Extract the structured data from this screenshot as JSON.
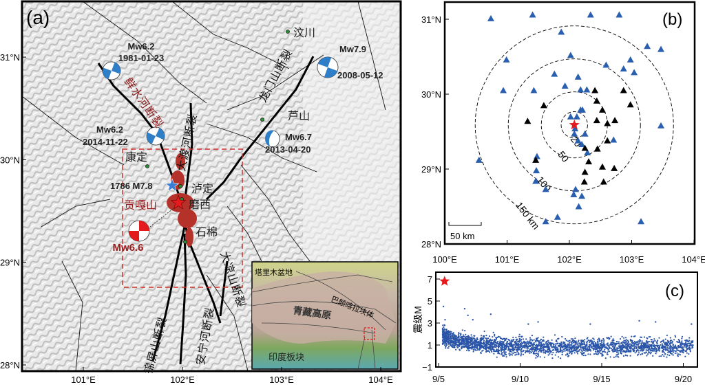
{
  "panel_a": {
    "label": "(a)",
    "lat_ticks": [
      {
        "v": 28,
        "t": "28°N"
      },
      {
        "v": 29,
        "t": "29°N"
      },
      {
        "v": 30,
        "t": "30°N"
      },
      {
        "v": 31,
        "t": "31°N"
      }
    ],
    "lon_ticks": [
      {
        "v": 101,
        "t": "101°E"
      },
      {
        "v": 102,
        "t": "102°E"
      },
      {
        "v": 103,
        "t": "103°E"
      },
      {
        "v": 104,
        "t": "104°E"
      }
    ],
    "places": {
      "wenchuan": "汶川",
      "lushan": "芦山",
      "kangding": "康定",
      "luding": "泸定",
      "moxi": "磨西",
      "shimian": "石棉",
      "gongga": "贡嘎山"
    },
    "faults": {
      "xianshuihe": "鲜水河断裂",
      "daduhe": "大渡河断裂",
      "longmenshan": "龙门山断裂",
      "jinpingshan": "锦屏山断裂",
      "anninghe": "安宁河断裂",
      "daliangshan": "大凉山断裂"
    },
    "events": [
      {
        "mag": "Mw6.2",
        "date": "1981-01-23",
        "color": "#2f7fc8"
      },
      {
        "mag": "Mw7.9",
        "date": "2008-05-12",
        "color": "#2f7fc8"
      },
      {
        "mag": "Mw6.7",
        "date": "2013-04-20",
        "color": "#2f7fc8"
      },
      {
        "mag": "Mw6.2",
        "date": "2014-11-22",
        "color": "#2f7fc8"
      },
      {
        "mag": "Mw6.6",
        "date": "",
        "color": "#e41a1c"
      }
    ],
    "historic": "1786 M7.8",
    "inset": {
      "tarim": "塔里木盆地",
      "bayanhar": "巴颜喀拉块体",
      "tibet": "青藏高原",
      "india": "印度板块"
    },
    "colors": {
      "mainshock": "#e41a1c",
      "historic_star": "#3a7fd5",
      "aftershocks": "#b5322a",
      "town": "#2e8b3a",
      "fault_label": "#8b1a1a",
      "box": "#c8302c"
    }
  },
  "chart_data": [
    {
      "type": "scatter",
      "panel": "(b)",
      "xlim": [
        100,
        104
      ],
      "ylim": [
        28,
        31.2
      ],
      "x_ticks": [
        {
          "v": 100,
          "t": "100°E"
        },
        {
          "v": 101,
          "t": "101°E"
        },
        {
          "v": 102,
          "t": "102°E"
        },
        {
          "v": 103,
          "t": "103°E"
        },
        {
          "v": 104,
          "t": "104°E"
        }
      ],
      "y_ticks": [
        {
          "v": 28,
          "t": "28°N"
        },
        {
          "v": 29,
          "t": "29°N"
        },
        {
          "v": 30,
          "t": "30°N"
        },
        {
          "v": 31,
          "t": "31°N"
        }
      ],
      "epicenter": {
        "lon": 102.08,
        "lat": 29.59,
        "color": "#e41a1c"
      },
      "rings": [
        {
          "km": 20,
          "t": "20"
        },
        {
          "km": 50,
          "t": "50"
        },
        {
          "km": 100,
          "t": "100"
        },
        {
          "km": 150,
          "t": "150 km"
        }
      ],
      "scale_bar": "50 km",
      "stations_blue_color": "#2a5fb0",
      "stations_black_color": "#000000",
      "stations_blue": [
        [
          100.74,
          31.01
        ],
        [
          101.41,
          31.06
        ],
        [
          102.34,
          31.06
        ],
        [
          102.8,
          31.06
        ],
        [
          101.87,
          30.83
        ],
        [
          103.25,
          30.64
        ],
        [
          103.47,
          30.6
        ],
        [
          102.02,
          30.52
        ],
        [
          100.99,
          30.46
        ],
        [
          102.98,
          30.46
        ],
        [
          102.59,
          30.39
        ],
        [
          103.04,
          30.29
        ],
        [
          101.76,
          30.27
        ],
        [
          102.14,
          30.23
        ],
        [
          102.87,
          30.34
        ],
        [
          100.94,
          30.05
        ],
        [
          101.43,
          30.05
        ],
        [
          102.18,
          30.06
        ],
        [
          101.93,
          30.11
        ],
        [
          102.28,
          30.06
        ],
        [
          103.47,
          29.58
        ],
        [
          100.55,
          29.12
        ],
        [
          101.48,
          29.17
        ],
        [
          101.47,
          28.98
        ],
        [
          101.46,
          28.84
        ],
        [
          101.62,
          28.73
        ],
        [
          102.1,
          28.73
        ],
        [
          102.07,
          28.66
        ],
        [
          101.81,
          28.36
        ],
        [
          101.62,
          28.3
        ],
        [
          103.15,
          28.3
        ],
        [
          102.15,
          28.5
        ],
        [
          102.2,
          28.64
        ],
        [
          102.02,
          29.7
        ],
        [
          102.21,
          29.79
        ],
        [
          102.12,
          29.7
        ],
        [
          102.08,
          29.47
        ],
        [
          102.14,
          29.38
        ],
        [
          102.25,
          29.47
        ],
        [
          102.09,
          29.54
        ],
        [
          102.2,
          29.33
        ],
        [
          102.29,
          29.22
        ],
        [
          102.71,
          29.39
        ],
        [
          102.18,
          29.79
        ]
      ],
      "stations_black": [
        [
          102.41,
          30.05
        ],
        [
          102.87,
          30.05
        ],
        [
          102.98,
          29.86
        ],
        [
          102.44,
          29.91
        ],
        [
          102.53,
          29.79
        ],
        [
          101.59,
          29.85
        ],
        [
          101.33,
          29.64
        ],
        [
          102.73,
          29.65
        ],
        [
          102.44,
          29.65
        ],
        [
          102.61,
          29.61
        ],
        [
          102.61,
          29.38
        ],
        [
          102.25,
          29.28
        ],
        [
          102.45,
          29.27
        ],
        [
          102.31,
          29.1
        ],
        [
          102.53,
          29.03
        ],
        [
          102.72,
          29.01
        ],
        [
          102.25,
          28.96
        ],
        [
          102.24,
          28.83
        ],
        [
          102.55,
          28.83
        ],
        [
          101.46,
          29.12
        ]
      ],
      "label": "(b)"
    },
    {
      "type": "scatter",
      "panel": "(c)",
      "ylabel": "震级M",
      "xlim": [
        5,
        20.6
      ],
      "ylim": [
        -1,
        7.6
      ],
      "x_ticks": [
        {
          "v": 5,
          "t": "9/5"
        },
        {
          "v": 10,
          "t": "9/10"
        },
        {
          "v": 15,
          "t": "9/15"
        },
        {
          "v": 20,
          "t": "9/20"
        }
      ],
      "y_ticks": [
        {
          "v": -1,
          "t": "−1"
        },
        {
          "v": 1,
          "t": "1"
        },
        {
          "v": 3,
          "t": "3"
        },
        {
          "v": 5,
          "t": "5"
        },
        {
          "v": 7,
          "t": "7"
        }
      ],
      "mainshock": {
        "x": 5.2,
        "y": 6.8,
        "color": "#e41a1c"
      },
      "point_color": "#2a55a8",
      "notable_points": [
        [
          5.3,
          4.5
        ],
        [
          6.6,
          4.3
        ],
        [
          6.8,
          3.7
        ],
        [
          8.2,
          3.8
        ],
        [
          5.4,
          3.3
        ],
        [
          11.1,
          3.1
        ],
        [
          17.3,
          3.2
        ],
        [
          18.3,
          3.1
        ],
        [
          20.5,
          2.9
        ],
        [
          10.5,
          2.9
        ],
        [
          14.3,
          2.9
        ],
        [
          7.1,
          3.3
        ]
      ],
      "label": "(c)"
    }
  ]
}
